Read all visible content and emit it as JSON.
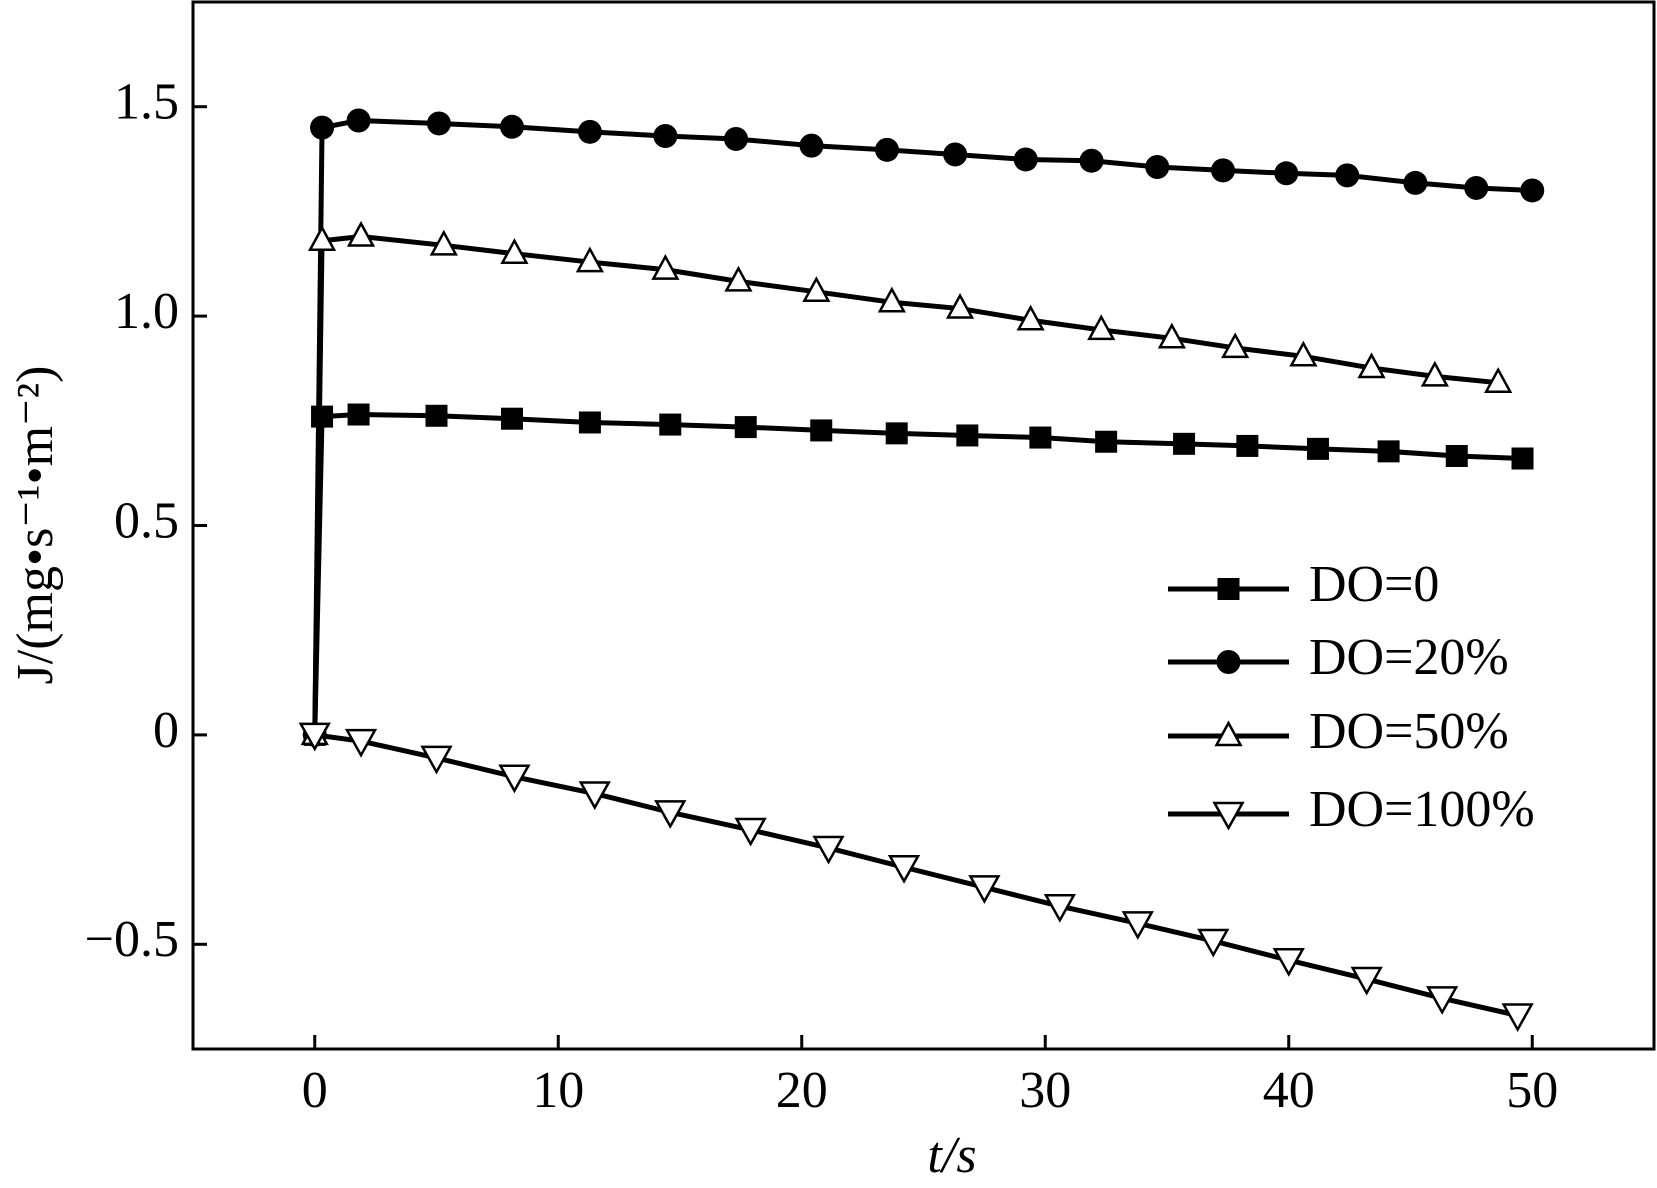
{
  "chart_data": {
    "type": "line",
    "x_label": "t/s",
    "y_label": "J/(mg•s⁻¹•m⁻²)",
    "xlim": [
      -5,
      55
    ],
    "ylim": [
      -0.75,
      1.75
    ],
    "xticks": [
      0,
      10,
      20,
      30,
      40,
      50
    ],
    "yticks": [
      {
        "value": -0.5,
        "label": "−0.5"
      },
      0,
      0.5,
      {
        "value": 1,
        "label": "1.0"
      },
      1.5
    ],
    "legend": "lower right",
    "series": [
      {
        "name": "DO=0",
        "color": "#000000",
        "marker": "square",
        "x": [
          0,
          0.3,
          1.8,
          5.0,
          8.1,
          11.3,
          14.6,
          17.7,
          20.8,
          23.9,
          26.8,
          29.8,
          32.5,
          35.7,
          38.3,
          41.2,
          44.1,
          46.9,
          49.6
        ],
        "values": [
          0,
          0.76,
          0.765,
          0.762,
          0.755,
          0.746,
          0.741,
          0.735,
          0.727,
          0.72,
          0.715,
          0.71,
          0.7,
          0.695,
          0.69,
          0.683,
          0.677,
          0.666,
          0.66
        ]
      },
      {
        "name": "DO=20%",
        "color": "#000000",
        "marker": "circle",
        "x": [
          0,
          0.3,
          1.8,
          5.1,
          8.1,
          11.3,
          14.4,
          17.3,
          20.4,
          23.5,
          26.3,
          29.2,
          31.9,
          34.6,
          37.3,
          39.9,
          42.4,
          45.2,
          47.7,
          50
        ],
        "values": [
          0,
          1.45,
          1.467,
          1.46,
          1.452,
          1.44,
          1.43,
          1.423,
          1.407,
          1.397,
          1.386,
          1.374,
          1.371,
          1.356,
          1.348,
          1.341,
          1.336,
          1.318,
          1.306,
          1.3
        ]
      },
      {
        "name": "DO=50%",
        "color": "#000000",
        "marker": "triangle-up",
        "x": [
          0,
          0.3,
          1.9,
          5.3,
          8.2,
          11.3,
          14.4,
          17.4,
          20.6,
          23.7,
          26.5,
          29.4,
          32.3,
          35.2,
          37.8,
          40.6,
          43.4,
          46,
          48.6
        ],
        "values": [
          0,
          1.18,
          1.19,
          1.169,
          1.149,
          1.129,
          1.111,
          1.083,
          1.058,
          1.033,
          1.018,
          0.99,
          0.967,
          0.947,
          0.924,
          0.904,
          0.876,
          0.856,
          0.841
        ]
      },
      {
        "name": "DO=100%",
        "color": "#000000",
        "marker": "triangle-down",
        "x": [
          0,
          1.9,
          5,
          8.2,
          11.5,
          14.6,
          17.9,
          21.1,
          24.2,
          27.5,
          30.6,
          33.8,
          36.9,
          40,
          43.2,
          46.3,
          49.4
        ],
        "values": [
          0,
          -0.015,
          -0.055,
          -0.1,
          -0.14,
          -0.185,
          -0.227,
          -0.27,
          -0.316,
          -0.364,
          -0.409,
          -0.45,
          -0.492,
          -0.538,
          -0.583,
          -0.629,
          -0.67
        ]
      }
    ]
  }
}
